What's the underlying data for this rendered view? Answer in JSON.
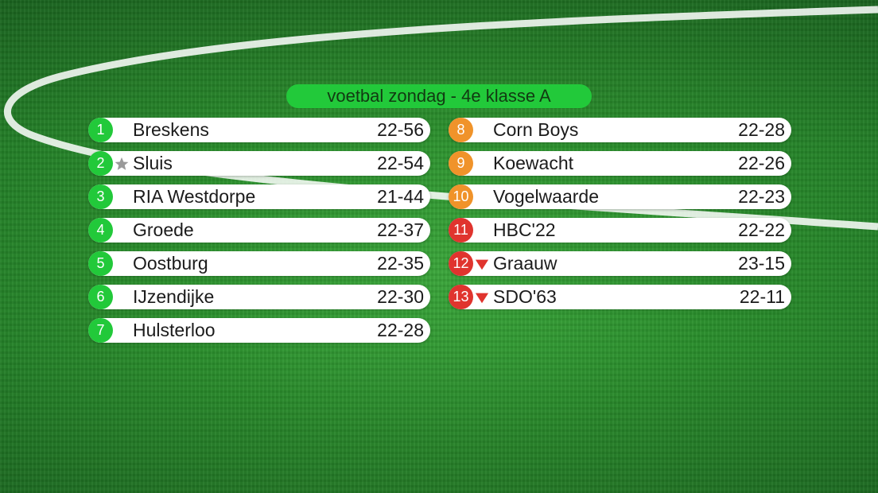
{
  "title": "voetbal zondag - 4e klasse A",
  "colors": {
    "promotion": "#22c93a",
    "mid": "#f0932a",
    "relegation": "#e0342e"
  },
  "standings_left": [
    {
      "pos": "1",
      "team": "Breskens",
      "score": "22-56",
      "color": "green",
      "marker": ""
    },
    {
      "pos": "2",
      "team": "Sluis",
      "score": "22-54",
      "color": "green",
      "marker": "star-icon"
    },
    {
      "pos": "3",
      "team": "RIA Westdorpe",
      "score": "21-44",
      "color": "green",
      "marker": ""
    },
    {
      "pos": "4",
      "team": "Groede",
      "score": "22-37",
      "color": "green",
      "marker": ""
    },
    {
      "pos": "5",
      "team": "Oostburg",
      "score": "22-35",
      "color": "green",
      "marker": ""
    },
    {
      "pos": "6",
      "team": "IJzendijke",
      "score": "22-30",
      "color": "green",
      "marker": ""
    },
    {
      "pos": "7",
      "team": "Hulsterloo",
      "score": "22-28",
      "color": "green",
      "marker": ""
    }
  ],
  "standings_right": [
    {
      "pos": "8",
      "team": "Corn Boys",
      "score": "22-28",
      "color": "orange",
      "marker": ""
    },
    {
      "pos": "9",
      "team": "Koewacht",
      "score": "22-26",
      "color": "orange",
      "marker": ""
    },
    {
      "pos": "10",
      "team": "Vogelwaarde",
      "score": "22-23",
      "color": "orange",
      "marker": ""
    },
    {
      "pos": "11",
      "team": "HBC'22",
      "score": "22-22",
      "color": "red",
      "marker": ""
    },
    {
      "pos": "12",
      "team": "Graauw",
      "score": "23-15",
      "color": "red",
      "marker": "down-arrow-icon"
    },
    {
      "pos": "13",
      "team": "SDO'63",
      "score": "22-11",
      "color": "red",
      "marker": "down-arrow-icon"
    }
  ]
}
